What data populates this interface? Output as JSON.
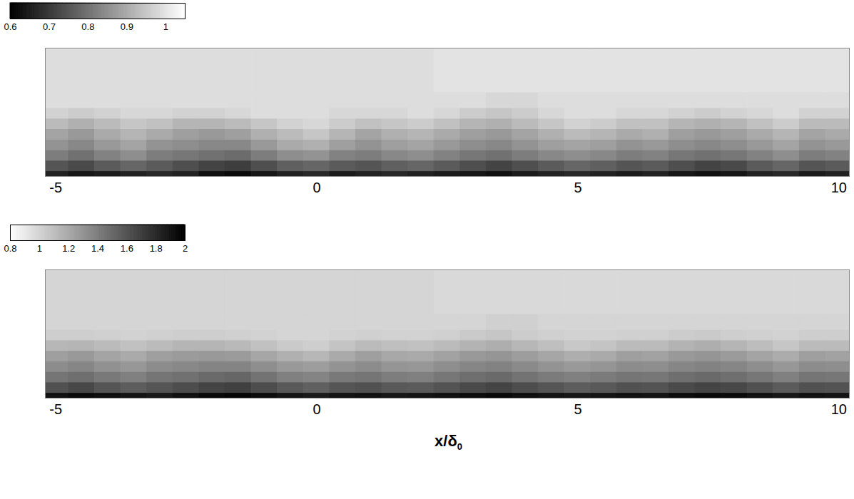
{
  "chart_data": [
    {
      "type": "heatmap",
      "xlim": [
        -5.2,
        10.2
      ],
      "xticks": [
        -5,
        0,
        5,
        10
      ],
      "ylim": [
        0,
        2.44
      ],
      "tick_labels": "x",
      "colorbar": {
        "range": [
          0.6,
          1.05
        ],
        "ticks": [
          0.6,
          0.7,
          0.8,
          0.9,
          1
        ]
      },
      "x_edges": [
        -5.2,
        -4.75,
        -4.25,
        -3.75,
        -3.25,
        -2.75,
        -2.25,
        -1.75,
        -1.25,
        -0.75,
        -0.25,
        0.25,
        0.75,
        1.25,
        1.75,
        2.25,
        2.75,
        3.25,
        3.75,
        4.25,
        4.75,
        5.25,
        5.75,
        6.25,
        6.75,
        7.25,
        7.75,
        8.25,
        8.75,
        9.25,
        9.75,
        10.2
      ],
      "y_edges": [
        0,
        0.1,
        0.3,
        0.5,
        0.7,
        0.9,
        1.1,
        1.3,
        1.6,
        2.44
      ],
      "cells": [
        [
          0.66,
          0.64,
          0.65,
          0.66,
          0.67,
          0.66,
          0.63,
          0.62,
          0.64,
          0.66,
          0.67,
          0.65,
          0.66,
          0.67,
          0.66,
          0.65,
          0.64,
          0.63,
          0.65,
          0.66,
          0.67,
          0.66,
          0.65,
          0.66,
          0.64,
          0.63,
          0.64,
          0.66,
          0.67,
          0.65,
          0.66
        ],
        [
          0.75,
          0.73,
          0.76,
          0.78,
          0.76,
          0.74,
          0.72,
          0.71,
          0.74,
          0.77,
          0.78,
          0.76,
          0.75,
          0.77,
          0.78,
          0.76,
          0.74,
          0.72,
          0.74,
          0.76,
          0.78,
          0.77,
          0.75,
          0.76,
          0.74,
          0.72,
          0.73,
          0.76,
          0.78,
          0.75,
          0.76
        ],
        [
          0.82,
          0.8,
          0.83,
          0.85,
          0.82,
          0.81,
          0.8,
          0.79,
          0.82,
          0.85,
          0.86,
          0.83,
          0.82,
          0.84,
          0.85,
          0.83,
          0.81,
          0.8,
          0.82,
          0.84,
          0.85,
          0.84,
          0.82,
          0.83,
          0.81,
          0.8,
          0.81,
          0.83,
          0.85,
          0.82,
          0.83
        ],
        [
          0.86,
          0.84,
          0.87,
          0.89,
          0.86,
          0.85,
          0.84,
          0.84,
          0.87,
          0.9,
          0.91,
          0.88,
          0.86,
          0.88,
          0.89,
          0.87,
          0.85,
          0.84,
          0.86,
          0.88,
          0.89,
          0.88,
          0.86,
          0.87,
          0.85,
          0.84,
          0.85,
          0.87,
          0.89,
          0.86,
          0.87
        ],
        [
          0.89,
          0.87,
          0.9,
          0.92,
          0.9,
          0.88,
          0.87,
          0.88,
          0.91,
          0.93,
          0.95,
          0.92,
          0.89,
          0.91,
          0.92,
          0.9,
          0.88,
          0.87,
          0.89,
          0.91,
          0.93,
          0.92,
          0.9,
          0.91,
          0.88,
          0.87,
          0.88,
          0.9,
          0.92,
          0.89,
          0.9
        ],
        [
          0.93,
          0.91,
          0.93,
          0.95,
          0.94,
          0.92,
          0.92,
          0.93,
          0.95,
          0.97,
          0.98,
          0.96,
          0.94,
          0.95,
          0.96,
          0.94,
          0.92,
          0.91,
          0.93,
          0.95,
          0.97,
          0.96,
          0.94,
          0.94,
          0.92,
          0.91,
          0.92,
          0.94,
          0.96,
          0.93,
          0.93
        ],
        [
          0.97,
          0.96,
          0.97,
          0.98,
          0.98,
          0.97,
          0.97,
          0.98,
          0.99,
          0.99,
          0.99,
          0.98,
          0.98,
          0.98,
          0.99,
          0.98,
          0.96,
          0.95,
          0.96,
          0.98,
          0.99,
          0.99,
          0.98,
          0.98,
          0.97,
          0.96,
          0.97,
          0.98,
          0.99,
          0.97,
          0.97
        ],
        [
          0.99,
          0.99,
          0.99,
          0.99,
          0.99,
          0.99,
          0.99,
          0.99,
          0.99,
          0.99,
          0.99,
          0.99,
          0.99,
          0.99,
          0.99,
          0.99,
          0.99,
          0.98,
          0.98,
          0.99,
          0.99,
          0.99,
          0.99,
          0.99,
          0.99,
          0.99,
          0.99,
          0.99,
          0.99,
          0.99,
          0.99
        ],
        [
          0.99,
          0.99,
          0.99,
          0.99,
          0.99,
          0.99,
          0.99,
          0.99,
          0.99,
          0.99,
          0.99,
          0.99,
          0.99,
          0.99,
          0.99,
          1,
          1,
          1,
          1,
          1,
          1,
          1,
          1,
          1,
          1,
          1,
          1,
          1,
          1,
          1,
          1
        ]
      ]
    },
    {
      "type": "heatmap",
      "xlim": [
        -5.2,
        10.2
      ],
      "xticks": [
        -5,
        0,
        5,
        10
      ],
      "ylim": [
        0,
        2.44
      ],
      "tick_labels": "x",
      "xlabel": "x/δ0",
      "colorbar": {
        "range": [
          0.8,
          2
        ],
        "ticks": [
          0.8,
          1,
          1.2,
          1.4,
          1.6,
          1.8,
          2
        ]
      },
      "x_edges": [
        -5.2,
        -4.75,
        -4.25,
        -3.75,
        -3.25,
        -2.75,
        -2.25,
        -1.75,
        -1.25,
        -0.75,
        -0.25,
        0.25,
        0.75,
        1.25,
        1.75,
        2.25,
        2.75,
        3.25,
        3.75,
        4.25,
        4.75,
        5.25,
        5.75,
        6.25,
        6.75,
        7.25,
        7.75,
        8.25,
        8.75,
        9.25,
        9.75,
        10.2
      ],
      "y_edges": [
        0,
        0.1,
        0.3,
        0.5,
        0.7,
        0.9,
        1.1,
        1.3,
        1.6,
        2.44
      ],
      "cells": [
        [
          1.92,
          1.95,
          1.93,
          1.9,
          1.88,
          1.92,
          1.96,
          1.97,
          1.94,
          1.9,
          1.88,
          1.91,
          1.92,
          1.89,
          1.9,
          1.92,
          1.94,
          1.96,
          1.93,
          1.91,
          1.89,
          1.9,
          1.92,
          1.91,
          1.94,
          1.96,
          1.95,
          1.92,
          1.89,
          1.92,
          1.91
        ],
        [
          1.62,
          1.66,
          1.6,
          1.56,
          1.6,
          1.64,
          1.68,
          1.7,
          1.64,
          1.58,
          1.55,
          1.6,
          1.62,
          1.58,
          1.57,
          1.61,
          1.65,
          1.68,
          1.64,
          1.6,
          1.56,
          1.58,
          1.62,
          1.61,
          1.65,
          1.68,
          1.66,
          1.62,
          1.57,
          1.62,
          1.61
        ],
        [
          1.45,
          1.48,
          1.43,
          1.4,
          1.45,
          1.47,
          1.5,
          1.52,
          1.46,
          1.4,
          1.38,
          1.43,
          1.45,
          1.41,
          1.4,
          1.44,
          1.48,
          1.5,
          1.46,
          1.42,
          1.4,
          1.42,
          1.45,
          1.44,
          1.48,
          1.5,
          1.48,
          1.44,
          1.4,
          1.45,
          1.44
        ],
        [
          1.34,
          1.37,
          1.32,
          1.29,
          1.34,
          1.36,
          1.38,
          1.38,
          1.33,
          1.28,
          1.26,
          1.31,
          1.34,
          1.3,
          1.29,
          1.33,
          1.37,
          1.39,
          1.35,
          1.31,
          1.28,
          1.3,
          1.34,
          1.33,
          1.37,
          1.39,
          1.37,
          1.33,
          1.29,
          1.34,
          1.33
        ],
        [
          1.25,
          1.28,
          1.23,
          1.2,
          1.25,
          1.27,
          1.28,
          1.27,
          1.22,
          1.17,
          1.14,
          1.2,
          1.25,
          1.21,
          1.2,
          1.24,
          1.28,
          1.3,
          1.26,
          1.22,
          1.18,
          1.2,
          1.25,
          1.24,
          1.28,
          1.3,
          1.27,
          1.23,
          1.19,
          1.25,
          1.24
        ],
        [
          1.14,
          1.15,
          1.12,
          1.09,
          1.12,
          1.15,
          1.15,
          1.13,
          1.09,
          1.05,
          1.03,
          1.08,
          1.12,
          1.1,
          1.09,
          1.12,
          1.16,
          1.18,
          1.14,
          1.1,
          1.06,
          1.08,
          1.12,
          1.12,
          1.16,
          1.18,
          1.15,
          1.11,
          1.07,
          1.12,
          1.12
        ],
        [
          1.03,
          1.03,
          1.02,
          1.01,
          1.02,
          1.03,
          1.03,
          1.02,
          1.01,
          1,
          1,
          1.01,
          1.02,
          1.01,
          1.01,
          1.02,
          1.05,
          1.07,
          1.04,
          1.02,
          1.01,
          1.01,
          1.02,
          1.02,
          1.04,
          1.05,
          1.03,
          1.02,
          1.01,
          1.03,
          1.03
        ],
        [
          1,
          1,
          1,
          1,
          1,
          1,
          1,
          1,
          1,
          1,
          1,
          1,
          1,
          1,
          1,
          1,
          1,
          1.02,
          1.02,
          1,
          1,
          1,
          1,
          1,
          1,
          1,
          1,
          1,
          1,
          1,
          1
        ],
        [
          1,
          1,
          1,
          1,
          1,
          1,
          1,
          1,
          1,
          1,
          1,
          1,
          1,
          1,
          1,
          0.98,
          0.98,
          0.98,
          0.98,
          0.98,
          0.98,
          0.98,
          0.98,
          0.98,
          0.98,
          0.98,
          0.98,
          0.98,
          0.98,
          0.98,
          0.98
        ]
      ]
    }
  ]
}
